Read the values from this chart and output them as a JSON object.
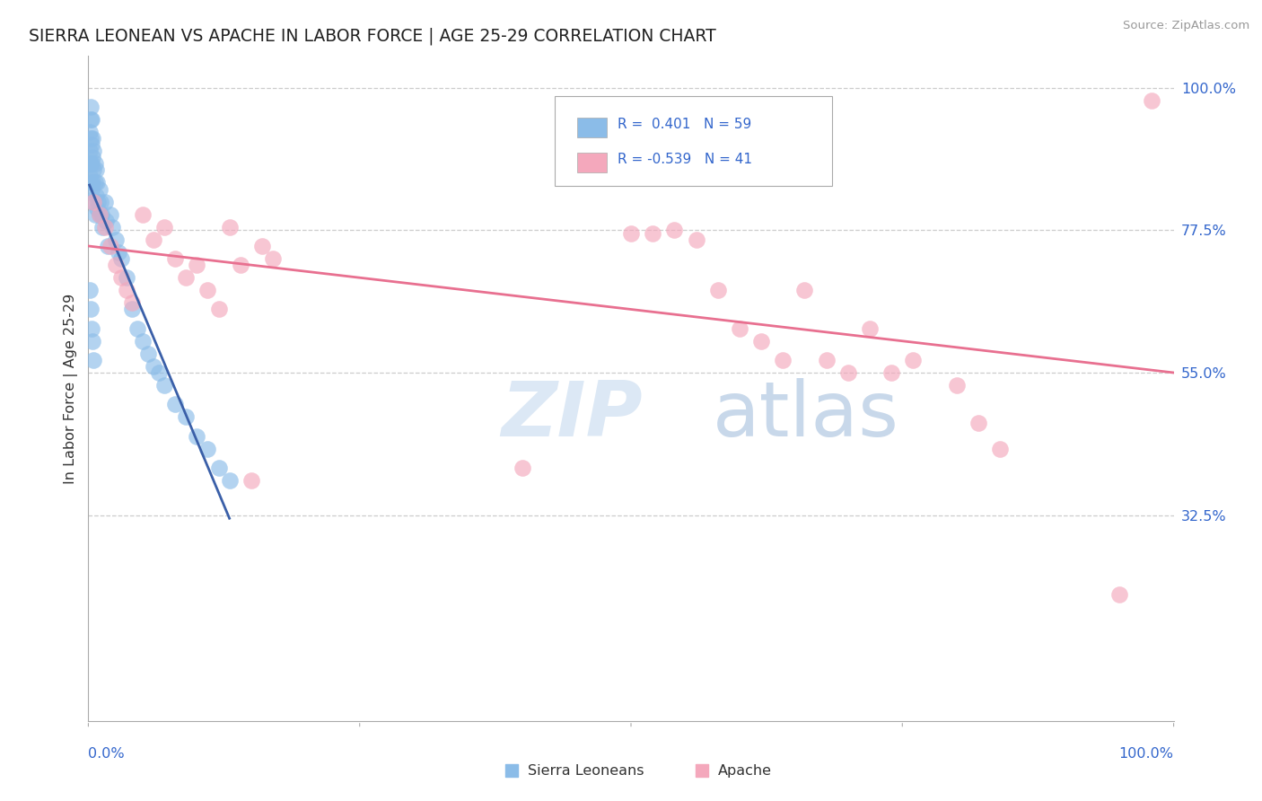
{
  "title": "SIERRA LEONEAN VS APACHE IN LABOR FORCE | AGE 25-29 CORRELATION CHART",
  "source_text": "Source: ZipAtlas.com",
  "ylabel": "In Labor Force | Age 25-29",
  "ytick_labels": [
    "100.0%",
    "77.5%",
    "55.0%",
    "32.5%"
  ],
  "ytick_values": [
    1.0,
    0.775,
    0.55,
    0.325
  ],
  "xlim": [
    0.0,
    1.0
  ],
  "ylim": [
    0.0,
    1.05
  ],
  "sierra_color": "#8bbce8",
  "apache_color": "#f4a8bc",
  "sierra_line_color": "#3a5fa8",
  "apache_line_color": "#e87090",
  "sierra_x": [
    0.001,
    0.001,
    0.001,
    0.001,
    0.002,
    0.002,
    0.002,
    0.002,
    0.002,
    0.003,
    0.003,
    0.003,
    0.003,
    0.004,
    0.004,
    0.004,
    0.005,
    0.005,
    0.005,
    0.006,
    0.006,
    0.006,
    0.007,
    0.007,
    0.008,
    0.008,
    0.009,
    0.01,
    0.01,
    0.011,
    0.012,
    0.013,
    0.015,
    0.016,
    0.018,
    0.02,
    0.022,
    0.025,
    0.028,
    0.03,
    0.035,
    0.04,
    0.045,
    0.05,
    0.055,
    0.06,
    0.065,
    0.07,
    0.08,
    0.09,
    0.1,
    0.11,
    0.12,
    0.13,
    0.001,
    0.002,
    0.003,
    0.004,
    0.005
  ],
  "sierra_y": [
    0.93,
    0.9,
    0.88,
    0.86,
    0.97,
    0.95,
    0.92,
    0.88,
    0.85,
    0.95,
    0.91,
    0.88,
    0.84,
    0.92,
    0.89,
    0.85,
    0.9,
    0.87,
    0.82,
    0.88,
    0.85,
    0.8,
    0.87,
    0.83,
    0.85,
    0.81,
    0.82,
    0.84,
    0.8,
    0.82,
    0.8,
    0.78,
    0.82,
    0.79,
    0.75,
    0.8,
    0.78,
    0.76,
    0.74,
    0.73,
    0.7,
    0.65,
    0.62,
    0.6,
    0.58,
    0.56,
    0.55,
    0.53,
    0.5,
    0.48,
    0.45,
    0.43,
    0.4,
    0.38,
    0.68,
    0.65,
    0.62,
    0.6,
    0.57
  ],
  "apache_x": [
    0.005,
    0.01,
    0.015,
    0.02,
    0.025,
    0.03,
    0.035,
    0.04,
    0.05,
    0.06,
    0.07,
    0.08,
    0.09,
    0.1,
    0.11,
    0.12,
    0.13,
    0.14,
    0.15,
    0.16,
    0.17,
    0.4,
    0.5,
    0.52,
    0.54,
    0.56,
    0.58,
    0.6,
    0.62,
    0.64,
    0.66,
    0.68,
    0.7,
    0.72,
    0.74,
    0.76,
    0.8,
    0.82,
    0.84,
    0.95,
    0.98
  ],
  "apache_y": [
    0.82,
    0.8,
    0.78,
    0.75,
    0.72,
    0.7,
    0.68,
    0.66,
    0.8,
    0.76,
    0.78,
    0.73,
    0.7,
    0.72,
    0.68,
    0.65,
    0.78,
    0.72,
    0.38,
    0.75,
    0.73,
    0.4,
    0.77,
    0.77,
    0.775,
    0.76,
    0.68,
    0.62,
    0.6,
    0.57,
    0.68,
    0.57,
    0.55,
    0.62,
    0.55,
    0.57,
    0.53,
    0.47,
    0.43,
    0.2,
    0.98
  ]
}
